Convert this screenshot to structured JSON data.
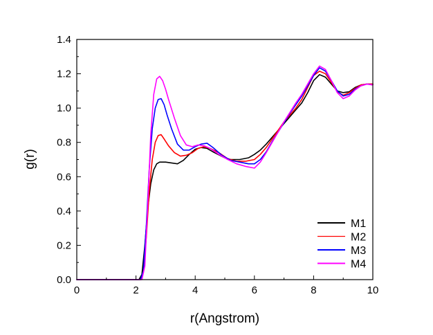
{
  "chart_data": {
    "type": "line",
    "title": "",
    "xlabel": "r(Angstrom)",
    "ylabel": "g(r)",
    "xlim": [
      0,
      10
    ],
    "ylim": [
      0,
      1.4
    ],
    "x_ticks": [
      "0",
      "2",
      "4",
      "6",
      "8",
      "10"
    ],
    "y_ticks": [
      "0.0",
      "0.2",
      "0.4",
      "0.6",
      "0.8",
      "1.0",
      "1.2",
      "1.4"
    ],
    "grid": false,
    "legend_position": "bottom-right",
    "series": [
      {
        "name": "M1",
        "color": "#000000",
        "x": [
          0,
          2.1,
          2.2,
          2.3,
          2.4,
          2.5,
          2.6,
          2.7,
          2.8,
          3.0,
          3.2,
          3.4,
          3.6,
          3.8,
          4.0,
          4.2,
          4.4,
          4.6,
          5.0,
          5.2,
          5.5,
          5.8,
          6.0,
          6.2,
          6.4,
          6.6,
          6.8,
          7.0,
          7.2,
          7.4,
          7.6,
          7.8,
          8.0,
          8.2,
          8.4,
          8.6,
          8.8,
          9.0,
          9.2,
          9.4,
          9.6,
          9.8,
          10.0
        ],
        "y": [
          0,
          0,
          0.03,
          0.2,
          0.42,
          0.56,
          0.64,
          0.675,
          0.685,
          0.685,
          0.68,
          0.675,
          0.695,
          0.73,
          0.76,
          0.77,
          0.765,
          0.745,
          0.71,
          0.7,
          0.7,
          0.71,
          0.73,
          0.755,
          0.79,
          0.83,
          0.87,
          0.91,
          0.95,
          0.99,
          1.03,
          1.09,
          1.16,
          1.195,
          1.18,
          1.14,
          1.1,
          1.09,
          1.095,
          1.12,
          1.135,
          1.14,
          1.14
        ]
      },
      {
        "name": "M2",
        "color": "#ff0000",
        "x": [
          0,
          2.15,
          2.25,
          2.35,
          2.45,
          2.55,
          2.65,
          2.75,
          2.85,
          2.95,
          3.1,
          3.3,
          3.5,
          3.7,
          3.9,
          4.1,
          4.3,
          4.5,
          4.8,
          5.1,
          5.4,
          5.7,
          6.0,
          6.2,
          6.4,
          6.6,
          6.8,
          7.0,
          7.2,
          7.4,
          7.6,
          7.8,
          8.0,
          8.2,
          8.4,
          8.6,
          8.8,
          9.0,
          9.2,
          9.4,
          9.6,
          9.8,
          10.0
        ],
        "y": [
          0,
          0,
          0.04,
          0.25,
          0.52,
          0.7,
          0.8,
          0.84,
          0.845,
          0.82,
          0.78,
          0.74,
          0.72,
          0.725,
          0.74,
          0.765,
          0.775,
          0.765,
          0.74,
          0.705,
          0.69,
          0.69,
          0.7,
          0.73,
          0.77,
          0.82,
          0.87,
          0.92,
          0.96,
          1.0,
          1.05,
          1.12,
          1.19,
          1.215,
          1.2,
          1.15,
          1.095,
          1.075,
          1.09,
          1.115,
          1.135,
          1.14,
          1.14
        ]
      },
      {
        "name": "M3",
        "color": "#0000ff",
        "x": [
          0,
          2.15,
          2.25,
          2.35,
          2.45,
          2.55,
          2.65,
          2.75,
          2.85,
          2.95,
          3.05,
          3.2,
          3.4,
          3.6,
          3.8,
          4.0,
          4.2,
          4.4,
          4.6,
          4.9,
          5.2,
          5.5,
          5.8,
          6.0,
          6.2,
          6.4,
          6.6,
          6.8,
          7.0,
          7.2,
          7.4,
          7.6,
          7.8,
          8.0,
          8.2,
          8.4,
          8.6,
          8.8,
          9.0,
          9.2,
          9.4,
          9.6,
          9.8,
          10.0
        ],
        "y": [
          0,
          0,
          0.05,
          0.32,
          0.65,
          0.88,
          1.0,
          1.05,
          1.055,
          1.02,
          0.96,
          0.88,
          0.79,
          0.755,
          0.755,
          0.775,
          0.79,
          0.795,
          0.77,
          0.725,
          0.695,
          0.685,
          0.675,
          0.675,
          0.7,
          0.745,
          0.805,
          0.86,
          0.915,
          0.97,
          1.02,
          1.07,
          1.13,
          1.19,
          1.235,
          1.215,
          1.16,
          1.1,
          1.07,
          1.08,
          1.11,
          1.13,
          1.14,
          1.135
        ]
      },
      {
        "name": "M4",
        "color": "#ff00ff",
        "x": [
          0,
          2.2,
          2.3,
          2.4,
          2.5,
          2.6,
          2.7,
          2.8,
          2.9,
          3.0,
          3.1,
          3.3,
          3.5,
          3.7,
          3.9,
          4.1,
          4.3,
          4.5,
          4.8,
          5.1,
          5.4,
          5.7,
          6.0,
          6.2,
          6.4,
          6.6,
          6.8,
          7.0,
          7.2,
          7.4,
          7.6,
          7.8,
          8.0,
          8.2,
          8.4,
          8.6,
          8.8,
          9.0,
          9.2,
          9.4,
          9.6,
          9.8,
          10.0
        ],
        "y": [
          0,
          0,
          0.08,
          0.45,
          0.85,
          1.08,
          1.17,
          1.185,
          1.16,
          1.11,
          1.05,
          0.94,
          0.84,
          0.785,
          0.775,
          0.785,
          0.78,
          0.765,
          0.73,
          0.7,
          0.675,
          0.66,
          0.65,
          0.685,
          0.74,
          0.8,
          0.86,
          0.92,
          0.975,
          1.03,
          1.08,
          1.14,
          1.2,
          1.245,
          1.225,
          1.16,
          1.09,
          1.055,
          1.07,
          1.105,
          1.13,
          1.14,
          1.135
        ]
      }
    ]
  }
}
